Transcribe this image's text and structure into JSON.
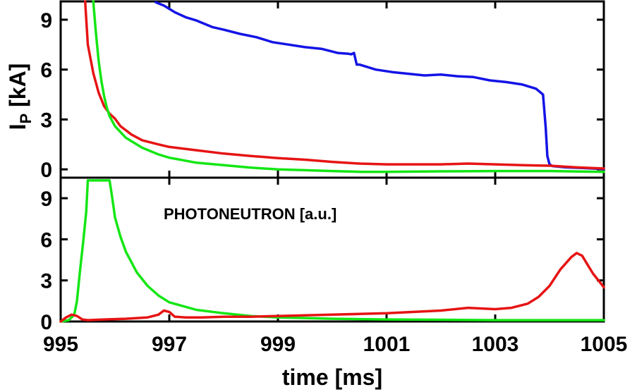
{
  "chart_data": [
    {
      "type": "line",
      "panel": "top",
      "title": "",
      "xlabel": "",
      "ylabel": "I",
      "ylabel_subscript": "P",
      "ylabel_unit": "[kA]",
      "xlim": [
        995,
        1005
      ],
      "ylim": [
        -0.5,
        10.1
      ],
      "yticks": [
        0,
        3,
        6,
        9
      ],
      "ytick_labels": [
        "0",
        "3",
        "6",
        "9"
      ],
      "colors": {
        "blue": "#1414e6",
        "red": "#e61414",
        "green": "#14e614"
      },
      "series": [
        {
          "name": "blue",
          "color": "#1414e6",
          "x": [
            996.75,
            996.9,
            997.1,
            997.3,
            997.5,
            997.8,
            998.0,
            998.3,
            998.6,
            998.9,
            999.2,
            999.5,
            999.8,
            1000.1,
            1000.3,
            1000.35,
            1000.4,
            1000.45,
            1000.5,
            1000.8,
            1001.1,
            1001.4,
            1001.7,
            1002.0,
            1002.3,
            1002.6,
            1002.9,
            1003.2,
            1003.5,
            1003.75,
            1003.88,
            1003.93,
            1003.96,
            1004.0,
            1004.05,
            1004.3,
            1004.6,
            1005.0
          ],
          "y": [
            10.05,
            9.85,
            9.45,
            9.15,
            8.95,
            8.55,
            8.4,
            8.15,
            7.95,
            7.65,
            7.5,
            7.35,
            7.25,
            7.0,
            6.95,
            6.92,
            7.0,
            6.3,
            6.3,
            6.0,
            5.85,
            5.75,
            5.65,
            5.7,
            5.6,
            5.55,
            5.35,
            5.25,
            5.1,
            4.85,
            4.5,
            2.5,
            0.8,
            0.3,
            0.2,
            0.12,
            0.08,
            0.02
          ]
        },
        {
          "name": "red",
          "color": "#e61414",
          "x": [
            995.45,
            995.5,
            995.6,
            995.7,
            995.8,
            995.9,
            996.0,
            996.1,
            996.3,
            996.5,
            996.8,
            997.0,
            997.5,
            998.0,
            998.5,
            999.0,
            999.5,
            1000.0,
            1000.5,
            1001.0,
            1001.5,
            1002.0,
            1002.5,
            1003.0,
            1003.5,
            1004.0,
            1004.5,
            1005.0
          ],
          "y": [
            10.1,
            7.5,
            5.8,
            4.6,
            3.8,
            3.35,
            3.05,
            2.6,
            2.1,
            1.75,
            1.5,
            1.35,
            1.15,
            0.95,
            0.8,
            0.68,
            0.58,
            0.45,
            0.35,
            0.3,
            0.3,
            0.3,
            0.35,
            0.3,
            0.25,
            0.22,
            0.12,
            0.05
          ]
        },
        {
          "name": "green",
          "color": "#14e614",
          "x": [
            995.6,
            995.65,
            995.7,
            995.75,
            995.8,
            995.85,
            995.9,
            996.0,
            996.2,
            996.5,
            996.8,
            997.0,
            997.5,
            998.0,
            998.5,
            999.0,
            999.5,
            1000.0,
            1000.5,
            1001.0,
            1002.0,
            1003.0,
            1004.0,
            1005.0
          ],
          "y": [
            10.1,
            8.2,
            6.5,
            5.3,
            4.4,
            3.7,
            3.2,
            2.6,
            1.9,
            1.3,
            0.9,
            0.7,
            0.4,
            0.25,
            0.1,
            0.0,
            -0.05,
            -0.1,
            -0.15,
            -0.15,
            -0.12,
            -0.1,
            -0.1,
            -0.15
          ]
        }
      ]
    },
    {
      "type": "line",
      "panel": "bottom",
      "title": "",
      "annotation": "PHOTONEUTRON [a.u.]",
      "xlabel": "time [ms]",
      "ylabel": "",
      "xlim": [
        995,
        1005
      ],
      "ylim": [
        0,
        10.5
      ],
      "xticks": [
        995,
        997,
        999,
        1001,
        1003,
        1005
      ],
      "xtick_labels": [
        "995",
        "997",
        "999",
        "1001",
        "1003",
        "1005"
      ],
      "yticks": [
        0,
        3,
        6,
        9
      ],
      "ytick_labels": [
        "0",
        "3",
        "6",
        "9"
      ],
      "series": [
        {
          "name": "green",
          "color": "#14e614",
          "x": [
            995.0,
            995.15,
            995.25,
            995.3,
            995.35,
            995.42,
            995.47,
            995.5,
            995.55,
            995.9,
            995.95,
            996.0,
            996.1,
            996.2,
            996.4,
            996.6,
            996.8,
            997.0,
            997.5,
            998.0,
            998.5,
            999.0,
            999.5,
            1000.0,
            1001.0,
            1003.0,
            1005.0
          ],
          "y": [
            0.0,
            0.1,
            0.5,
            1.5,
            3.5,
            6.0,
            8.0,
            10.3,
            10.3,
            10.3,
            9.0,
            7.6,
            6.2,
            5.1,
            3.6,
            2.6,
            1.9,
            1.4,
            0.85,
            0.6,
            0.4,
            0.3,
            0.25,
            0.2,
            0.15,
            0.1,
            0.1
          ]
        },
        {
          "name": "red",
          "color": "#e61414",
          "x": [
            995.0,
            995.1,
            995.2,
            995.3,
            995.4,
            995.5,
            995.8,
            996.2,
            996.6,
            996.8,
            996.9,
            997.0,
            997.1,
            997.3,
            997.6,
            998.0,
            998.5,
            999.0,
            999.5,
            1000.0,
            1000.5,
            1001.0,
            1001.5,
            1002.0,
            1002.5,
            1003.0,
            1003.3,
            1003.6,
            1003.8,
            1004.0,
            1004.2,
            1004.4,
            1004.5,
            1004.6,
            1004.8,
            1005.0
          ],
          "y": [
            0.0,
            0.3,
            0.5,
            0.4,
            0.15,
            0.1,
            0.15,
            0.2,
            0.3,
            0.5,
            0.8,
            0.7,
            0.35,
            0.3,
            0.3,
            0.35,
            0.35,
            0.4,
            0.45,
            0.5,
            0.55,
            0.6,
            0.7,
            0.8,
            1.0,
            0.9,
            1.0,
            1.3,
            1.8,
            2.6,
            3.8,
            4.7,
            5.0,
            4.8,
            3.5,
            2.5
          ]
        }
      ]
    }
  ]
}
